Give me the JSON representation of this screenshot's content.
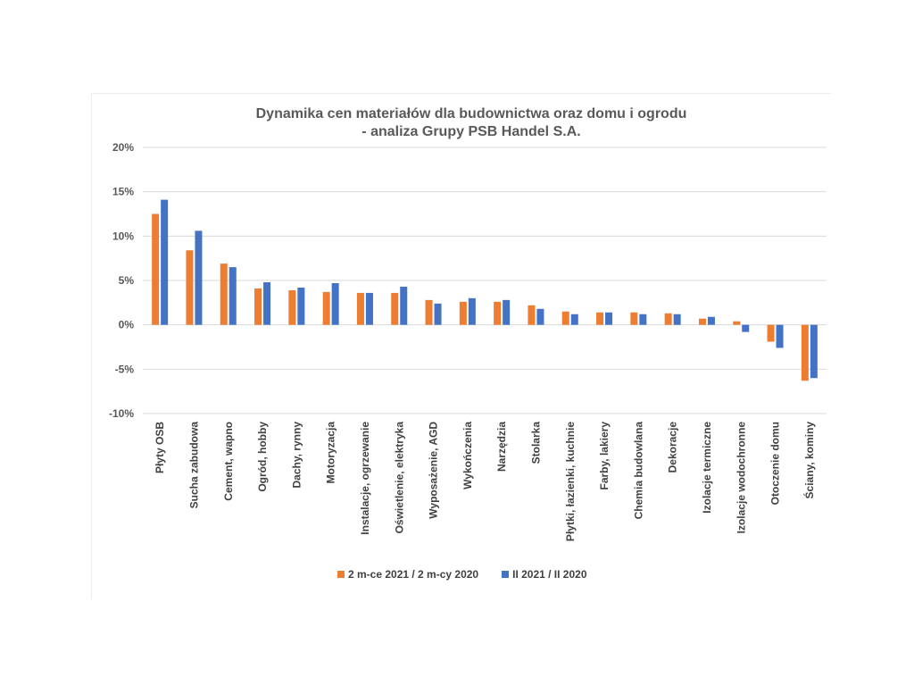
{
  "chart_data": {
    "type": "bar",
    "title": [
      "Dynamika cen materiałów dla budownictwa oraz domu i ogrodu",
      "- analiza Grupy PSB Handel S.A."
    ],
    "categories": [
      "Płyty OSB",
      "Sucha zabudowa",
      "Cement, wapno",
      "Ogród, hobby",
      "Dachy, rynny",
      "Motoryzacja",
      "Instalacje, ogrzewanie",
      "Oświetlenie, elektryka",
      "Wyposażenie, AGD",
      "Wykończenia",
      "Narzędzia",
      "Stolarka",
      "Płytki, łazienki, kuchnie",
      "Farby, lakiery",
      "Chemia budowlana",
      "Dekoracje",
      "Izolacje termiczne",
      "Izolacje wodochronne",
      "Otoczenie domu",
      "Ściany, kominy"
    ],
    "series": [
      {
        "name": "2 m-ce 2021 / 2 m-cy 2020",
        "color": "#ED7D31",
        "values": [
          12.5,
          8.4,
          6.9,
          4.1,
          3.9,
          3.7,
          3.6,
          3.6,
          2.8,
          2.6,
          2.6,
          2.2,
          1.5,
          1.4,
          1.4,
          1.3,
          0.7,
          0.4,
          -1.9,
          -6.3
        ]
      },
      {
        "name": "II 2021 / II 2020",
        "color": "#4472C4",
        "values": [
          14.1,
          10.6,
          6.5,
          4.8,
          4.2,
          4.7,
          3.6,
          4.3,
          2.4,
          3.0,
          2.8,
          1.8,
          1.2,
          1.4,
          1.2,
          1.2,
          0.9,
          -0.8,
          -2.6,
          -6.0
        ]
      }
    ],
    "ylim": [
      -10,
      20
    ],
    "yticks": [
      -10,
      -5,
      0,
      5,
      10,
      15,
      20
    ],
    "ytick_labels": [
      "-10%",
      "-5%",
      "0%",
      "5%",
      "10%",
      "15%",
      "20%"
    ],
    "grid": true,
    "legend_position": "bottom",
    "xlabel": "",
    "ylabel": ""
  }
}
